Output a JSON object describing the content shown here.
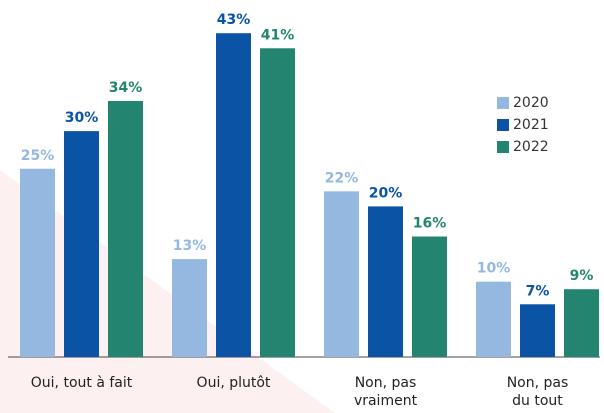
{
  "chart_data": {
    "type": "bar",
    "categories": [
      "Oui, tout à fait",
      "Oui, plutôt",
      "Non, pas\nvraiment",
      "Non, pas\ndu tout"
    ],
    "series": [
      {
        "name": "2020",
        "color": "#94b8e0",
        "values": [
          25,
          13,
          22,
          10
        ],
        "value_labels": [
          "25%",
          "13%",
          "22%",
          "10%"
        ]
      },
      {
        "name": "2021",
        "color": "#0a53a5",
        "values": [
          30,
          43,
          20,
          7
        ],
        "value_labels": [
          "30%",
          "43%",
          "20%",
          "7%"
        ]
      },
      {
        "name": "2022",
        "color": "#23846f",
        "values": [
          34,
          41,
          16,
          9
        ],
        "value_labels": [
          "34%",
          "41%",
          "16%",
          "9%"
        ]
      }
    ],
    "legend": "right"
  }
}
